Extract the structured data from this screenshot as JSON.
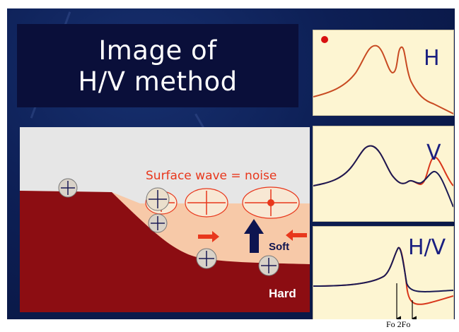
{
  "title": "Image of\nH/V method",
  "diagram": {
    "surface_label": "Surface wave = noise",
    "soft_label": "Soft",
    "hard_label": "Hard"
  },
  "panels": {
    "h_label": "H",
    "v_label": "V",
    "hv_label": "H/V"
  },
  "axis_note": "Fo 2Fo",
  "colors": {
    "hard_layer": "#8c0d12",
    "soft_layer": "#f7c9a8",
    "sky": "#e6e6e6",
    "panel_bg": "#fdf5d2",
    "curve_red": "#d8361b",
    "curve_navy": "#1a1a55",
    "label_blue": "#1a1f80",
    "arrow_red": "#e8371c",
    "arrow_navy": "#0d1450"
  }
}
